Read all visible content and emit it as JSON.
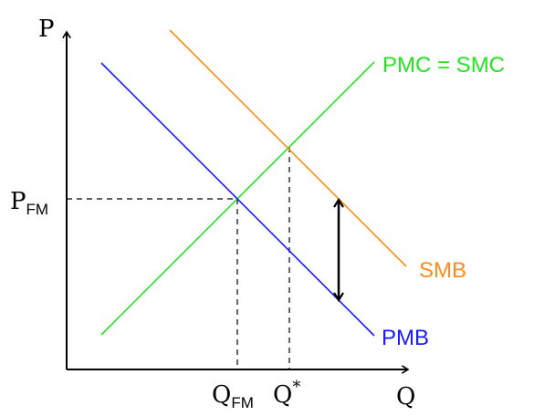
{
  "axes": {
    "y_label": "P",
    "x_label": "Q"
  },
  "labels": {
    "p_fm_main": "P",
    "p_fm_sub": "FM",
    "q_fm_main": "Q",
    "q_fm_sub": "FM",
    "q_star_main": "Q",
    "q_star_sup": "*"
  },
  "curves": {
    "pmc_smc": {
      "label": "PMC = SMC",
      "color": "#22e622"
    },
    "smb": {
      "label": "SMB",
      "color": "#ff8c1a"
    },
    "pmb": {
      "label": "PMB",
      "color": "#1a1aff"
    }
  },
  "colors": {
    "axis": "#000000",
    "guides": "#000000",
    "gap_arrow": "#000000"
  }
}
